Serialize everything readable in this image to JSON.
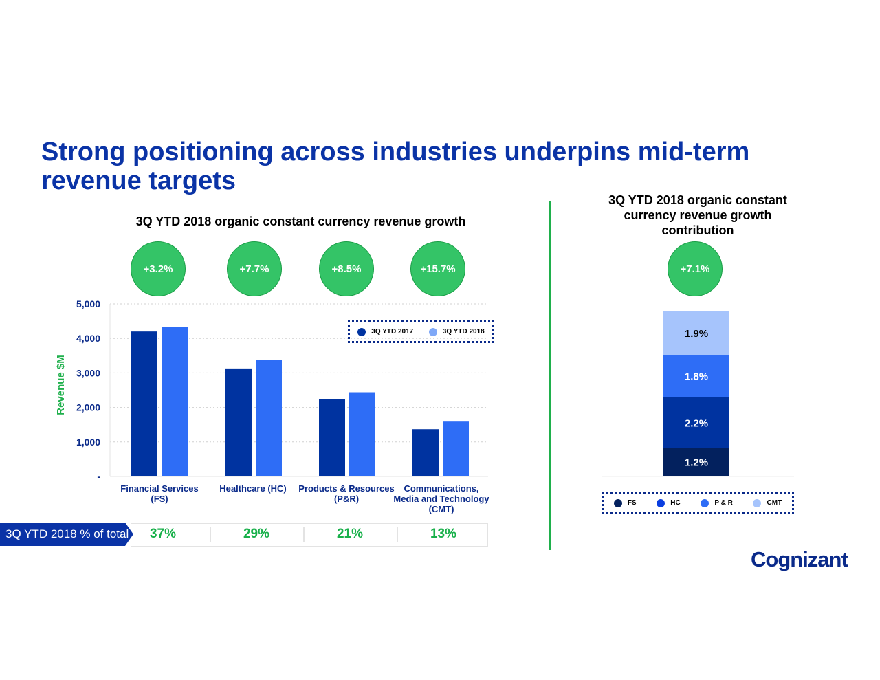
{
  "title": "Strong positioning across industries underpins mid-term revenue targets",
  "left_subtitle": "3Q YTD 2018 organic constant currency revenue growth",
  "right_subtitle": "3Q YTD 2018 organic constant currency revenue growth contribution",
  "growth_bubbles": [
    "+3.2%",
    "+7.7%",
    "+8.5%",
    "+15.7%"
  ],
  "total_bubble": "+7.1%",
  "share_row": {
    "label": "3Q YTD 2018 % of total",
    "values": [
      "37%",
      "29%",
      "21%",
      "13%"
    ]
  },
  "logo": "Cognizant",
  "colors": {
    "title": "#0a33a6",
    "green": "#34c467",
    "dark_blue": "#0033a0",
    "mid_blue": "#2e6df6"
  },
  "chart_data": [
    {
      "type": "bar",
      "ylabel": "Revenue $M",
      "ylim": [
        0,
        5000
      ],
      "yticks": [
        "-",
        "1,000",
        "2,000",
        "3,000",
        "4,000",
        "5,000"
      ],
      "grid": true,
      "legend_placement": "top-right",
      "categories": [
        "Financial Services (FS)",
        "Healthcare (HC)",
        "Products & Resources (P&R)",
        "Communications, Media and Technology (CMT)"
      ],
      "series": [
        {
          "name": "3Q YTD 2017",
          "color": "#0033a0",
          "values": [
            4200,
            3130,
            2250,
            1370
          ]
        },
        {
          "name": "3Q YTD 2018",
          "color": "#2e6df6",
          "values": [
            4330,
            3380,
            2440,
            1590
          ]
        }
      ]
    },
    {
      "type": "bar",
      "stacked": true,
      "legend_placement": "bottom",
      "series": [
        {
          "name": "FS",
          "color": "#03215e",
          "value": 1.2,
          "label": "1.2%"
        },
        {
          "name": "HC",
          "color": "#0033a0",
          "value": 2.2,
          "label": "2.2%"
        },
        {
          "name": "P & R",
          "color": "#2e6df6",
          "value": 1.8,
          "label": "1.8%"
        },
        {
          "name": "CMT",
          "color": "#a6c4fc",
          "value": 1.9,
          "label": "1.9%"
        }
      ]
    }
  ]
}
